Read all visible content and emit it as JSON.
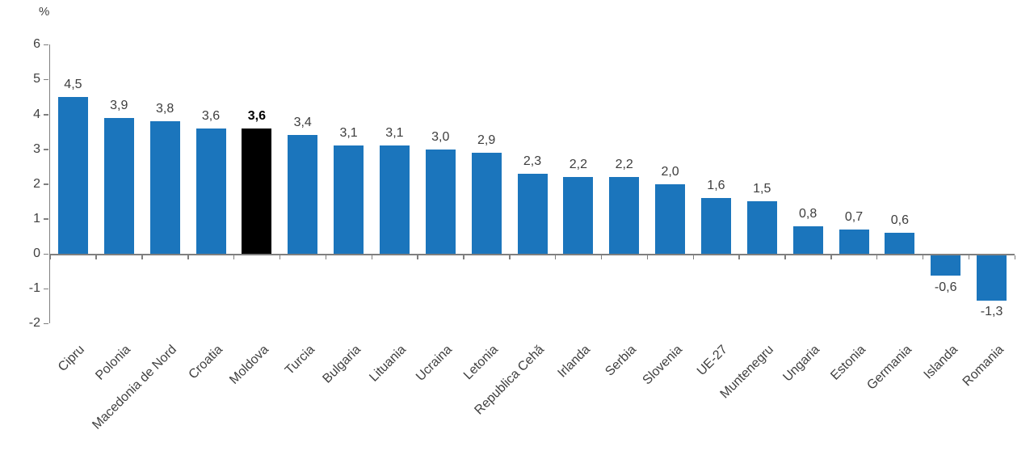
{
  "chart_data": {
    "type": "bar",
    "title": "",
    "unit_label": "%",
    "legend": null,
    "grid": false,
    "categories": [
      "Cipru",
      "Polonia",
      "Macedonia de Nord",
      "Croatia",
      "Moldova",
      "Turcia",
      "Bulgaria",
      "Lituania",
      "Ucraina",
      "Letonia",
      "Republica Cehă",
      "Irlanda",
      "Serbia",
      "Slovenia",
      "UE-27",
      "Muntenegru",
      "Ungaria",
      "Estonia",
      "Germania",
      "Islanda",
      "Romania"
    ],
    "values": [
      4.5,
      3.9,
      3.8,
      3.6,
      3.6,
      3.4,
      3.1,
      3.1,
      3.0,
      2.9,
      2.3,
      2.2,
      2.2,
      2.0,
      1.6,
      1.5,
      0.8,
      0.7,
      0.6,
      -0.6,
      -1.3
    ],
    "value_labels": [
      "4,5",
      "3,9",
      "3,8",
      "3,6",
      "3,6",
      "3,4",
      "3,1",
      "3,1",
      "3,0",
      "2,9",
      "2,3",
      "2,2",
      "2,2",
      "2,0",
      "1,6",
      "1,5",
      "0,8",
      "0,7",
      "0,6",
      "-0,6",
      "-1,3"
    ],
    "highlight_index": 4,
    "highlight_category": "Moldova",
    "y_axis": {
      "min": -2,
      "max": 6,
      "step": 1,
      "tick_labels": [
        "6",
        "5",
        "4",
        "3",
        "2",
        "1",
        "0",
        "-1",
        "-2"
      ]
    },
    "colors": {
      "bar": "#1b75bc",
      "highlight_bar": "#000000",
      "axis": "#7f7f7f",
      "text": "#404040"
    }
  }
}
